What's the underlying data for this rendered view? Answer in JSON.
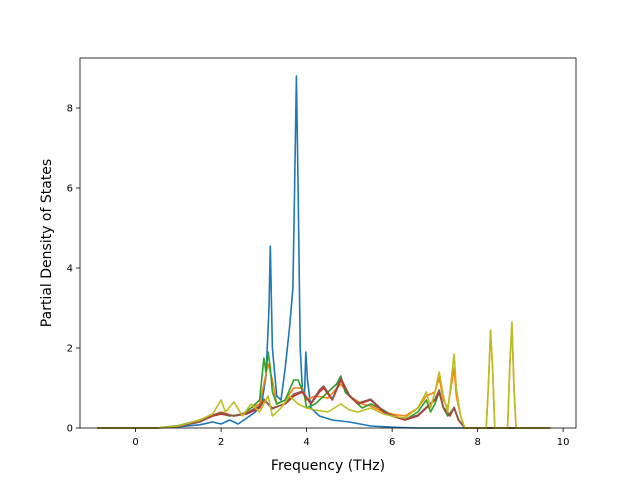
{
  "chart_data": {
    "type": "line",
    "title": "",
    "xlabel": "Frequency (THz)",
    "ylabel": "Partial Density of States",
    "xlim": [
      -1.3,
      10.3
    ],
    "ylim": [
      0,
      9.25
    ],
    "xticks": [
      0,
      2,
      4,
      6,
      8,
      10
    ],
    "yticks": [
      0,
      2,
      4,
      6,
      8
    ],
    "xtick_labels": [
      "0",
      "2",
      "4",
      "6",
      "8",
      "10"
    ],
    "ytick_labels": [
      "0",
      "2",
      "4",
      "6",
      "8"
    ],
    "grid": false,
    "legend": "none",
    "series": [
      {
        "color": "#1f77b4",
        "points": [
          [
            -0.9,
            0
          ],
          [
            0.5,
            0
          ],
          [
            1.0,
            0.03
          ],
          [
            1.5,
            0.08
          ],
          [
            1.8,
            0.15
          ],
          [
            2.0,
            0.1
          ],
          [
            2.2,
            0.2
          ],
          [
            2.4,
            0.1
          ],
          [
            2.6,
            0.25
          ],
          [
            2.8,
            0.4
          ],
          [
            2.95,
            0.6
          ],
          [
            3.05,
            1.3
          ],
          [
            3.12,
            3.0
          ],
          [
            3.15,
            4.55
          ],
          [
            3.2,
            2.0
          ],
          [
            3.3,
            0.8
          ],
          [
            3.4,
            0.7
          ],
          [
            3.5,
            1.5
          ],
          [
            3.6,
            2.5
          ],
          [
            3.68,
            3.5
          ],
          [
            3.72,
            6.0
          ],
          [
            3.76,
            8.8
          ],
          [
            3.8,
            6.0
          ],
          [
            3.85,
            2.0
          ],
          [
            3.9,
            1.0
          ],
          [
            3.95,
            0.8
          ],
          [
            3.98,
            1.9
          ],
          [
            4.02,
            1.2
          ],
          [
            4.1,
            0.5
          ],
          [
            4.3,
            0.3
          ],
          [
            4.6,
            0.2
          ],
          [
            5.0,
            0.15
          ],
          [
            5.5,
            0.05
          ],
          [
            6.0,
            0.02
          ],
          [
            6.5,
            0
          ],
          [
            9.7,
            0
          ]
        ]
      },
      {
        "color": "#ff7f0e",
        "points": [
          [
            -0.9,
            0
          ],
          [
            0.5,
            0
          ],
          [
            1.0,
            0.05
          ],
          [
            1.5,
            0.2
          ],
          [
            2.0,
            0.4
          ],
          [
            2.3,
            0.3
          ],
          [
            2.5,
            0.35
          ],
          [
            2.7,
            0.5
          ],
          [
            2.9,
            0.6
          ],
          [
            3.0,
            1.1
          ],
          [
            3.1,
            1.6
          ],
          [
            3.2,
            1.2
          ],
          [
            3.3,
            0.6
          ],
          [
            3.5,
            0.7
          ],
          [
            3.7,
            1.0
          ],
          [
            3.9,
            1.0
          ],
          [
            4.0,
            0.7
          ],
          [
            4.2,
            0.8
          ],
          [
            4.5,
            0.75
          ],
          [
            4.8,
            1.1
          ],
          [
            5.0,
            0.8
          ],
          [
            5.3,
            0.6
          ],
          [
            5.5,
            0.55
          ],
          [
            5.8,
            0.4
          ],
          [
            6.0,
            0.35
          ],
          [
            6.3,
            0.3
          ],
          [
            6.6,
            0.5
          ],
          [
            6.8,
            0.8
          ],
          [
            7.0,
            0.9
          ],
          [
            7.1,
            1.25
          ],
          [
            7.2,
            0.7
          ],
          [
            7.3,
            0.5
          ],
          [
            7.45,
            1.5
          ],
          [
            7.5,
            0.8
          ],
          [
            7.6,
            0.3
          ],
          [
            7.7,
            0
          ],
          [
            8.2,
            0
          ],
          [
            8.25,
            1.0
          ],
          [
            8.3,
            2.4
          ],
          [
            8.35,
            1.5
          ],
          [
            8.4,
            0
          ],
          [
            8.7,
            0
          ],
          [
            8.75,
            1.5
          ],
          [
            8.8,
            2.6
          ],
          [
            8.85,
            1.0
          ],
          [
            8.9,
            0
          ],
          [
            9.7,
            0
          ]
        ]
      },
      {
        "color": "#2ca02c",
        "points": [
          [
            -0.9,
            0
          ],
          [
            0.5,
            0
          ],
          [
            1.0,
            0.06
          ],
          [
            1.5,
            0.2
          ],
          [
            1.8,
            0.3
          ],
          [
            2.0,
            0.35
          ],
          [
            2.2,
            0.3
          ],
          [
            2.5,
            0.35
          ],
          [
            2.7,
            0.5
          ],
          [
            2.9,
            0.7
          ],
          [
            3.0,
            1.75
          ],
          [
            3.05,
            1.4
          ],
          [
            3.1,
            1.9
          ],
          [
            3.15,
            1.5
          ],
          [
            3.2,
            0.9
          ],
          [
            3.3,
            0.6
          ],
          [
            3.5,
            0.7
          ],
          [
            3.7,
            1.2
          ],
          [
            3.8,
            1.2
          ],
          [
            3.95,
            0.8
          ],
          [
            4.0,
            0.5
          ],
          [
            4.2,
            0.6
          ],
          [
            4.5,
            0.9
          ],
          [
            4.7,
            1.1
          ],
          [
            4.8,
            1.3
          ],
          [
            4.9,
            0.9
          ],
          [
            5.1,
            0.7
          ],
          [
            5.3,
            0.5
          ],
          [
            5.5,
            0.6
          ],
          [
            5.8,
            0.45
          ],
          [
            6.0,
            0.3
          ],
          [
            6.3,
            0.2
          ],
          [
            6.6,
            0.4
          ],
          [
            6.8,
            0.7
          ],
          [
            6.9,
            0.4
          ],
          [
            7.0,
            0.6
          ],
          [
            7.1,
            0.9
          ],
          [
            7.2,
            0.5
          ],
          [
            7.3,
            0.3
          ],
          [
            7.45,
            0.5
          ],
          [
            7.55,
            0.2
          ],
          [
            7.7,
            0
          ],
          [
            9.7,
            0
          ]
        ]
      },
      {
        "color": "#d62728",
        "points": [
          [
            -0.9,
            0
          ],
          [
            0.5,
            0
          ],
          [
            1.0,
            0.04
          ],
          [
            1.5,
            0.15
          ],
          [
            1.8,
            0.3
          ],
          [
            2.0,
            0.35
          ],
          [
            2.3,
            0.3
          ],
          [
            2.6,
            0.35
          ],
          [
            2.9,
            0.5
          ],
          [
            3.0,
            0.7
          ],
          [
            3.2,
            0.5
          ],
          [
            3.5,
            0.6
          ],
          [
            3.7,
            0.8
          ],
          [
            3.9,
            0.9
          ],
          [
            4.1,
            0.6
          ],
          [
            4.3,
            0.9
          ],
          [
            4.4,
            1.0
          ],
          [
            4.6,
            0.7
          ],
          [
            4.8,
            1.2
          ],
          [
            5.0,
            0.8
          ],
          [
            5.2,
            0.6
          ],
          [
            5.5,
            0.7
          ],
          [
            5.8,
            0.4
          ],
          [
            6.0,
            0.3
          ],
          [
            6.3,
            0.2
          ],
          [
            6.6,
            0.3
          ],
          [
            6.8,
            0.5
          ],
          [
            7.0,
            0.7
          ],
          [
            7.1,
            0.9
          ],
          [
            7.2,
            0.5
          ],
          [
            7.35,
            0.3
          ],
          [
            7.45,
            0.5
          ],
          [
            7.55,
            0.2
          ],
          [
            7.7,
            0
          ],
          [
            9.7,
            0
          ]
        ]
      },
      {
        "color": "#8c564b",
        "points": [
          [
            -0.9,
            0
          ],
          [
            0.5,
            0
          ],
          [
            1.0,
            0.04
          ],
          [
            1.5,
            0.15
          ],
          [
            1.8,
            0.32
          ],
          [
            2.0,
            0.38
          ],
          [
            2.3,
            0.3
          ],
          [
            2.6,
            0.38
          ],
          [
            2.9,
            0.55
          ],
          [
            3.0,
            0.72
          ],
          [
            3.2,
            0.48
          ],
          [
            3.5,
            0.62
          ],
          [
            3.7,
            0.85
          ],
          [
            3.9,
            0.92
          ],
          [
            4.1,
            0.62
          ],
          [
            4.3,
            0.95
          ],
          [
            4.4,
            1.05
          ],
          [
            4.6,
            0.72
          ],
          [
            4.8,
            1.25
          ],
          [
            5.0,
            0.82
          ],
          [
            5.2,
            0.62
          ],
          [
            5.5,
            0.72
          ],
          [
            5.8,
            0.42
          ],
          [
            6.0,
            0.32
          ],
          [
            6.3,
            0.22
          ],
          [
            6.6,
            0.32
          ],
          [
            6.8,
            0.52
          ],
          [
            7.0,
            0.72
          ],
          [
            7.1,
            0.95
          ],
          [
            7.2,
            0.52
          ],
          [
            7.35,
            0.32
          ],
          [
            7.45,
            0.52
          ],
          [
            7.55,
            0.22
          ],
          [
            7.7,
            0
          ],
          [
            9.7,
            0
          ]
        ]
      },
      {
        "color": "#bcbd22",
        "points": [
          [
            -0.9,
            0
          ],
          [
            0.5,
            0
          ],
          [
            1.0,
            0.05
          ],
          [
            1.5,
            0.2
          ],
          [
            1.8,
            0.35
          ],
          [
            2.0,
            0.7
          ],
          [
            2.1,
            0.4
          ],
          [
            2.3,
            0.65
          ],
          [
            2.5,
            0.3
          ],
          [
            2.7,
            0.6
          ],
          [
            2.9,
            0.4
          ],
          [
            3.1,
            0.8
          ],
          [
            3.2,
            0.3
          ],
          [
            3.4,
            0.5
          ],
          [
            3.6,
            0.8
          ],
          [
            3.8,
            0.6
          ],
          [
            4.0,
            0.5
          ],
          [
            4.2,
            0.45
          ],
          [
            4.5,
            0.4
          ],
          [
            4.8,
            0.6
          ],
          [
            5.0,
            0.45
          ],
          [
            5.2,
            0.4
          ],
          [
            5.5,
            0.5
          ],
          [
            5.8,
            0.35
          ],
          [
            6.0,
            0.3
          ],
          [
            6.3,
            0.25
          ],
          [
            6.6,
            0.5
          ],
          [
            6.8,
            0.9
          ],
          [
            6.9,
            0.5
          ],
          [
            7.0,
            0.9
          ],
          [
            7.1,
            1.4
          ],
          [
            7.2,
            0.8
          ],
          [
            7.3,
            0.4
          ],
          [
            7.45,
            1.85
          ],
          [
            7.5,
            1.0
          ],
          [
            7.6,
            0.3
          ],
          [
            7.7,
            0
          ],
          [
            8.2,
            0
          ],
          [
            8.25,
            1.0
          ],
          [
            8.3,
            2.45
          ],
          [
            8.35,
            1.5
          ],
          [
            8.4,
            0
          ],
          [
            8.7,
            0
          ],
          [
            8.75,
            1.5
          ],
          [
            8.8,
            2.65
          ],
          [
            8.85,
            1.0
          ],
          [
            8.9,
            0
          ],
          [
            9.7,
            0
          ]
        ]
      }
    ]
  }
}
